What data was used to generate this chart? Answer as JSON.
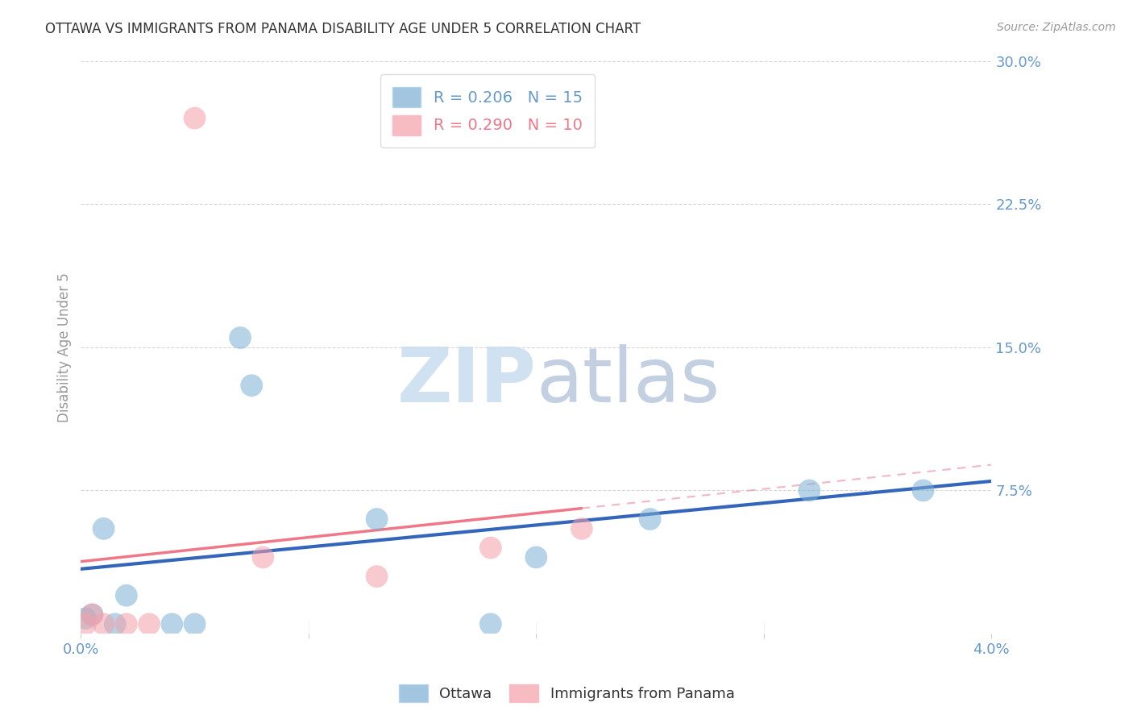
{
  "title": "OTTAWA VS IMMIGRANTS FROM PANAMA DISABILITY AGE UNDER 5 CORRELATION CHART",
  "source": "Source: ZipAtlas.com",
  "ylabel": "Disability Age Under 5",
  "xlim": [
    0.0,
    0.04
  ],
  "ylim": [
    0.0,
    0.3
  ],
  "yticks": [
    0.075,
    0.15,
    0.225,
    0.3
  ],
  "ytick_labels": [
    "7.5%",
    "15.0%",
    "22.5%",
    "30.0%"
  ],
  "xticks": [
    0.0,
    0.01,
    0.02,
    0.03,
    0.04
  ],
  "xtick_labels": [
    "0.0%",
    "",
    "",
    "",
    "4.0%"
  ],
  "ottawa_color": "#7BAFD4",
  "panama_color": "#F4A0A8",
  "ottawa_R": 0.206,
  "ottawa_N": 15,
  "panama_R": 0.29,
  "panama_N": 10,
  "ottawa_points_x": [
    0.0002,
    0.0005,
    0.001,
    0.0015,
    0.002,
    0.004,
    0.005,
    0.007,
    0.0075,
    0.013,
    0.018,
    0.02,
    0.025,
    0.032,
    0.037
  ],
  "ottawa_points_y": [
    0.008,
    0.01,
    0.055,
    0.005,
    0.02,
    0.005,
    0.005,
    0.155,
    0.13,
    0.06,
    0.005,
    0.04,
    0.06,
    0.075,
    0.075
  ],
  "panama_points_x": [
    0.0002,
    0.0005,
    0.001,
    0.002,
    0.003,
    0.005,
    0.008,
    0.013,
    0.018,
    0.022
  ],
  "panama_points_y": [
    0.005,
    0.01,
    0.005,
    0.005,
    0.005,
    0.27,
    0.04,
    0.03,
    0.045,
    0.055
  ],
  "watermark_zip": "ZIP",
  "watermark_atlas": "atlas",
  "background_color": "#FFFFFF",
  "grid_color": "#CCCCCC",
  "title_color": "#333333",
  "tick_color": "#6699CC",
  "ylabel_color": "#999999"
}
